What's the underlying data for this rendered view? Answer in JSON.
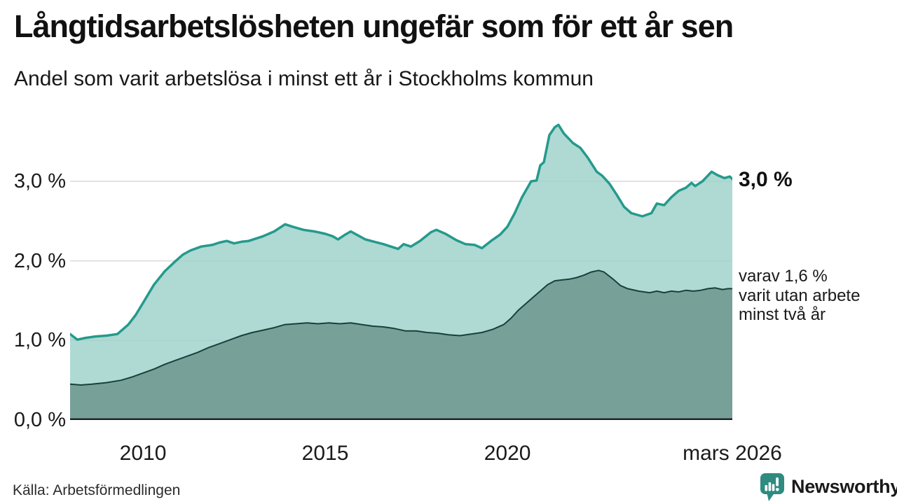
{
  "header": {
    "title": "Långtidsarbetslösheten ungefär som för ett år sen",
    "subtitle": "Andel som varit arbetslösa i minst ett år i Stockholms kommun"
  },
  "colors": {
    "accent_teal": "#249a8c",
    "fill_light": "rgba(155,208,200,0.8)",
    "fill_dark": "rgba(106,148,140,0.82)",
    "line_dark": "#17413a",
    "gridline": "#d9d9d9",
    "baseline": "#1f1f1f",
    "brand_teal": "#2e8b80",
    "text": "#1a1a1a"
  },
  "chart_data": {
    "type": "area",
    "title": "Långtidsarbetslösheten ungefär som för ett år sen",
    "subtitle": "Andel som varit arbetslösa i minst ett år i Stockholms kommun",
    "xlabel": "",
    "ylabel": "",
    "xlim": [
      2008,
      2026.17
    ],
    "ylim": [
      0,
      3.92
    ],
    "grid": true,
    "legend": false,
    "x_axis": {
      "ticks": [
        {
          "value": 2010,
          "label": "2010"
        },
        {
          "value": 2015,
          "label": "2015"
        },
        {
          "value": 2020,
          "label": "2020"
        },
        {
          "value": 2026.17,
          "label": "mars 2026"
        }
      ]
    },
    "y_axis": {
      "ticks": [
        {
          "value": 0,
          "label": "0,0 %"
        },
        {
          "value": 1,
          "label": "1,0 %"
        },
        {
          "value": 2,
          "label": "2,0 %"
        },
        {
          "value": 3,
          "label": "3,0 %"
        }
      ]
    },
    "series": [
      {
        "name": "minst ett år",
        "color": "#249a8c",
        "fill": "rgba(155,208,200,0.8)",
        "stroke_width": 3.5,
        "x": [
          2008.0,
          2008.2,
          2008.4,
          2008.7,
          2009.0,
          2009.3,
          2009.6,
          2009.8,
          2010.0,
          2010.3,
          2010.6,
          2010.9,
          2011.1,
          2011.3,
          2011.6,
          2011.9,
          2012.1,
          2012.3,
          2012.5,
          2012.7,
          2012.9,
          2013.1,
          2013.3,
          2013.6,
          2013.9,
          2014.1,
          2014.4,
          2014.7,
          2015.0,
          2015.2,
          2015.35,
          2015.55,
          2015.7,
          2015.9,
          2016.1,
          2016.35,
          2016.6,
          2016.8,
          2017.0,
          2017.15,
          2017.35,
          2017.6,
          2017.9,
          2018.05,
          2018.3,
          2018.6,
          2018.85,
          2019.1,
          2019.3,
          2019.55,
          2019.8,
          2020.0,
          2020.2,
          2020.4,
          2020.55,
          2020.65,
          2020.8,
          2020.9,
          2021.0,
          2021.15,
          2021.3,
          2021.4,
          2021.55,
          2021.8,
          2022.0,
          2022.2,
          2022.45,
          2022.6,
          2022.8,
          2023.0,
          2023.2,
          2023.4,
          2023.7,
          2023.95,
          2024.1,
          2024.3,
          2024.5,
          2024.7,
          2024.9,
          2025.05,
          2025.15,
          2025.35,
          2025.6,
          2025.75,
          2025.95,
          2026.1,
          2026.17
        ],
        "y": [
          1.08,
          1.01,
          1.03,
          1.05,
          1.06,
          1.08,
          1.2,
          1.32,
          1.47,
          1.7,
          1.87,
          2.0,
          2.08,
          2.13,
          2.18,
          2.2,
          2.23,
          2.25,
          2.22,
          2.24,
          2.25,
          2.28,
          2.31,
          2.37,
          2.46,
          2.43,
          2.39,
          2.37,
          2.34,
          2.31,
          2.27,
          2.33,
          2.37,
          2.32,
          2.27,
          2.24,
          2.21,
          2.18,
          2.15,
          2.21,
          2.18,
          2.25,
          2.36,
          2.39,
          2.34,
          2.26,
          2.21,
          2.2,
          2.16,
          2.25,
          2.33,
          2.43,
          2.6,
          2.8,
          2.92,
          3.0,
          3.01,
          3.2,
          3.24,
          3.58,
          3.68,
          3.71,
          3.6,
          3.48,
          3.42,
          3.3,
          3.12,
          3.07,
          2.97,
          2.83,
          2.68,
          2.6,
          2.56,
          2.6,
          2.72,
          2.7,
          2.8,
          2.88,
          2.92,
          2.98,
          2.94,
          3.0,
          3.12,
          3.08,
          3.04,
          3.06,
          3.03
        ]
      },
      {
        "name": "minst två år",
        "color": "#17413a",
        "fill": "rgba(106,148,140,0.82)",
        "stroke_width": 2,
        "x": [
          2008.0,
          2008.3,
          2008.6,
          2009.0,
          2009.4,
          2009.7,
          2010.0,
          2010.3,
          2010.6,
          2010.9,
          2011.2,
          2011.5,
          2011.8,
          2012.1,
          2012.4,
          2012.7,
          2013.0,
          2013.3,
          2013.6,
          2013.9,
          2014.2,
          2014.5,
          2014.8,
          2015.1,
          2015.4,
          2015.7,
          2016.0,
          2016.3,
          2016.6,
          2016.9,
          2017.2,
          2017.5,
          2017.8,
          2018.1,
          2018.4,
          2018.7,
          2019.0,
          2019.3,
          2019.6,
          2019.9,
          2020.1,
          2020.3,
          2020.5,
          2020.7,
          2020.9,
          2021.1,
          2021.3,
          2021.5,
          2021.7,
          2021.9,
          2022.1,
          2022.3,
          2022.5,
          2022.65,
          2022.9,
          2023.1,
          2023.3,
          2023.6,
          2023.9,
          2024.1,
          2024.3,
          2024.5,
          2024.7,
          2024.9,
          2025.1,
          2025.3,
          2025.5,
          2025.7,
          2025.9,
          2026.05,
          2026.17
        ],
        "y": [
          0.45,
          0.44,
          0.45,
          0.47,
          0.5,
          0.54,
          0.59,
          0.64,
          0.7,
          0.75,
          0.8,
          0.85,
          0.91,
          0.96,
          1.01,
          1.06,
          1.1,
          1.13,
          1.16,
          1.2,
          1.21,
          1.22,
          1.21,
          1.22,
          1.21,
          1.22,
          1.2,
          1.18,
          1.17,
          1.15,
          1.12,
          1.12,
          1.1,
          1.09,
          1.07,
          1.06,
          1.08,
          1.1,
          1.14,
          1.2,
          1.28,
          1.38,
          1.46,
          1.54,
          1.62,
          1.7,
          1.75,
          1.76,
          1.77,
          1.79,
          1.82,
          1.86,
          1.88,
          1.86,
          1.77,
          1.69,
          1.65,
          1.62,
          1.6,
          1.62,
          1.6,
          1.62,
          1.61,
          1.63,
          1.62,
          1.63,
          1.65,
          1.66,
          1.64,
          1.65,
          1.65
        ]
      }
    ],
    "annotations": {
      "end_label": "3,0 %",
      "end_value": 3.0,
      "note_lines": [
        "varav 1,6 %",
        "varit utan arbete",
        "minst två år"
      ],
      "note_value": 1.6
    }
  },
  "footer": {
    "source": "Källa: Arbetsförmedlingen",
    "brand": "Newsworthy"
  }
}
